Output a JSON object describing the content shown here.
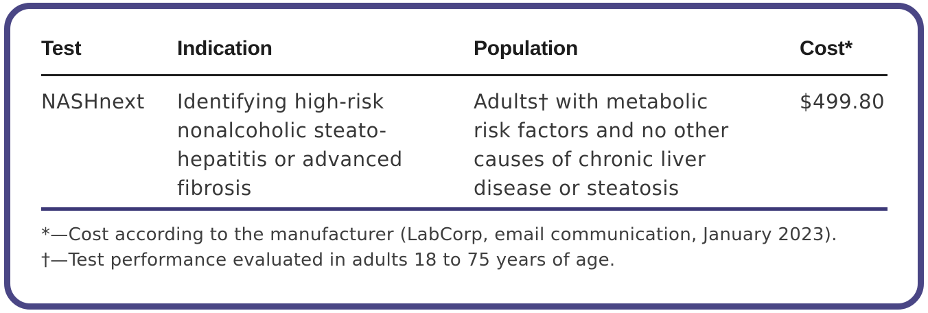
{
  "colors": {
    "border": "#4a4685",
    "divider_navy": "#3c3877",
    "divider_black": "#1f1f1f",
    "header_text": "#1c1c1c",
    "body_text": "#383838",
    "footnote_text": "#3e3e3e",
    "background": "#ffffff"
  },
  "table": {
    "columns": [
      "Test",
      "Indication",
      "Population",
      "Cost*"
    ],
    "rows": [
      {
        "test": "NASHnext",
        "indication": "Identifying high-risk\nnonalcoholic steato-\nhepatitis or advanced\nfibrosis",
        "population": "Adults† with metabolic\nrisk factors and no other\ncauses of chronic liver\ndisease or steatosis",
        "cost": "$499.80"
      }
    ]
  },
  "footnotes": [
    "*—Cost according to the manufacturer (LabCorp, email communication, January 2023).",
    "†—Test performance evaluated in adults 18 to 75 years of age."
  ]
}
